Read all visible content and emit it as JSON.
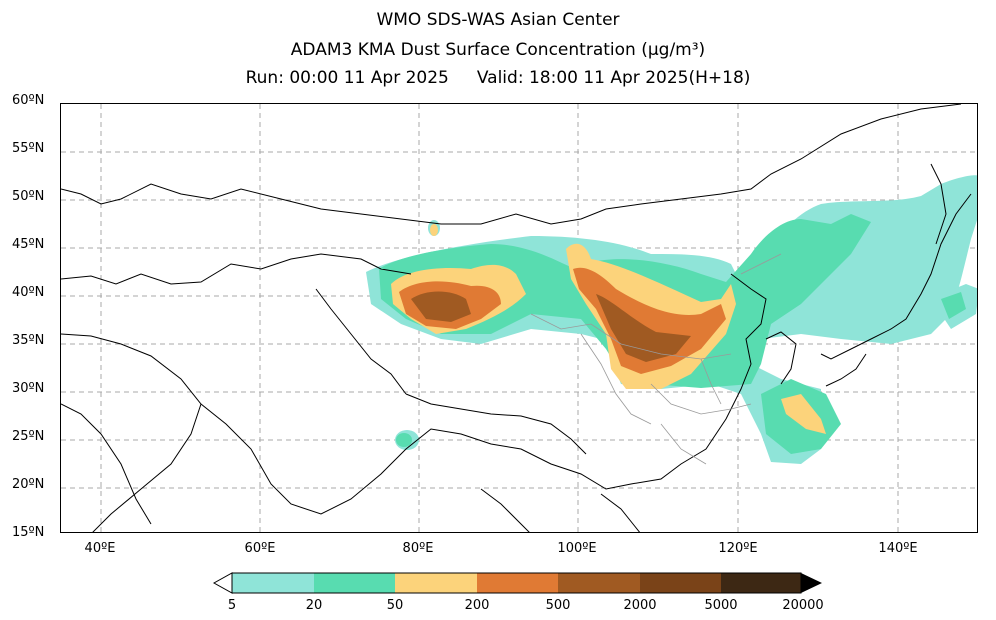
{
  "header": {
    "line1": "WMO SDS-WAS Asian Center",
    "line2": "ADAM3 KMA Dust Surface Concentration (μg/m³)",
    "run": "Run: 00:00 11 Apr 2025",
    "valid": "Valid: 18:00 11 Apr 2025(H+18)"
  },
  "axes": {
    "lat_labels": [
      "60ºN",
      "55ºN",
      "50ºN",
      "45ºN",
      "40ºN",
      "35ºN",
      "30ºN",
      "25ºN",
      "20ºN",
      "15ºN"
    ],
    "lon_labels": [
      "40ºE",
      "60ºE",
      "80ºE",
      "100ºE",
      "120ºE",
      "140ºE"
    ],
    "lat_range": [
      15,
      60
    ],
    "lon_range": [
      35,
      150
    ]
  },
  "legend": {
    "ticks": [
      "5",
      "20",
      "50",
      "200",
      "500",
      "2000",
      "5000",
      "20000"
    ],
    "colors": [
      "#8fe4d8",
      "#58dcb0",
      "#fcd37b",
      "#e07a34",
      "#a05a22",
      "#7a4318",
      "#3d2814"
    ]
  },
  "colors": {
    "grid": "#a8a8a8",
    "coast": "#000000",
    "province": "#9a9a9a"
  }
}
